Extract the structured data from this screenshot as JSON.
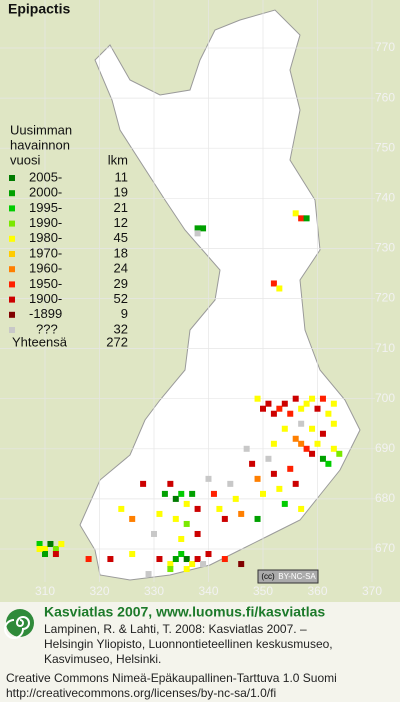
{
  "title": "Epipactis",
  "legend": {
    "heading": [
      "Uusimman",
      "havainnon",
      "vuosi"
    ],
    "count_heading": "lkm",
    "classes": [
      {
        "label": "2005-",
        "count": 11,
        "color": "#007a00"
      },
      {
        "label": "2000-",
        "count": 19,
        "color": "#00a000"
      },
      {
        "label": "1995-",
        "count": 21,
        "color": "#00cc00"
      },
      {
        "label": "1990-",
        "count": 12,
        "color": "#7ae800"
      },
      {
        "label": "1980-",
        "count": 45,
        "color": "#ffff00"
      },
      {
        "label": "1970-",
        "count": 18,
        "color": "#ffcc00"
      },
      {
        "label": "1960-",
        "count": 24,
        "color": "#ff7f00"
      },
      {
        "label": "1950-",
        "count": 29,
        "color": "#ff2000"
      },
      {
        "label": "1900-",
        "count": 52,
        "color": "#cc0000"
      },
      {
        "label": "-1899",
        "count": 9,
        "color": "#800000"
      },
      {
        "label": "???",
        "count": 32,
        "color": "#c8c8c8"
      }
    ],
    "total_label": "Yhteensä",
    "total": 272
  },
  "xticks": [
    310,
    320,
    330,
    340,
    350,
    360,
    370
  ],
  "yticks": [
    770,
    760,
    750,
    740,
    730,
    720,
    710,
    700,
    690,
    680,
    670
  ],
  "observations": [
    [
      309,
      671,
      2
    ],
    [
      310,
      670,
      4
    ],
    [
      311,
      671,
      0
    ],
    [
      312,
      670,
      3
    ],
    [
      313,
      671,
      4
    ],
    [
      310,
      669,
      1
    ],
    [
      312,
      669,
      8
    ],
    [
      309,
      670,
      4
    ],
    [
      318,
      668,
      7
    ],
    [
      322,
      668,
      8
    ],
    [
      326,
      669,
      4
    ],
    [
      331,
      668,
      8
    ],
    [
      333,
      667,
      4
    ],
    [
      334,
      668,
      1
    ],
    [
      335,
      669,
      2
    ],
    [
      336,
      668,
      0
    ],
    [
      337,
      667,
      4
    ],
    [
      338,
      668,
      8
    ],
    [
      333,
      666,
      3
    ],
    [
      336,
      666,
      4
    ],
    [
      339,
      667,
      10
    ],
    [
      340,
      669,
      8
    ],
    [
      343,
      668,
      7
    ],
    [
      346,
      667,
      9
    ],
    [
      329,
      665,
      10
    ],
    [
      331,
      677,
      4
    ],
    [
      332,
      681,
      1
    ],
    [
      333,
      683,
      8
    ],
    [
      334,
      680,
      0
    ],
    [
      335,
      681,
      2
    ],
    [
      336,
      679,
      4
    ],
    [
      337,
      681,
      1
    ],
    [
      338,
      678,
      8
    ],
    [
      334,
      676,
      4
    ],
    [
      336,
      675,
      3
    ],
    [
      338,
      673,
      8
    ],
    [
      335,
      672,
      4
    ],
    [
      340,
      684,
      10
    ],
    [
      341,
      681,
      7
    ],
    [
      342,
      678,
      4
    ],
    [
      343,
      676,
      8
    ],
    [
      344,
      683,
      10
    ],
    [
      345,
      680,
      4
    ],
    [
      346,
      677,
      6
    ],
    [
      328,
      683,
      8
    ],
    [
      326,
      676,
      6
    ],
    [
      324,
      678,
      4
    ],
    [
      330,
      673,
      10
    ],
    [
      347,
      690,
      10
    ],
    [
      348,
      687,
      8
    ],
    [
      349,
      684,
      6
    ],
    [
      350,
      681,
      4
    ],
    [
      351,
      688,
      10
    ],
    [
      352,
      685,
      8
    ],
    [
      353,
      682,
      4
    ],
    [
      354,
      679,
      2
    ],
    [
      355,
      686,
      7
    ],
    [
      356,
      683,
      8
    ],
    [
      357,
      678,
      4
    ],
    [
      349,
      676,
      1
    ],
    [
      352,
      691,
      4
    ],
    [
      349,
      700,
      4
    ],
    [
      350,
      698,
      8
    ],
    [
      351,
      699,
      8
    ],
    [
      352,
      697,
      8
    ],
    [
      353,
      698,
      7
    ],
    [
      354,
      699,
      8
    ],
    [
      355,
      697,
      7
    ],
    [
      356,
      700,
      8
    ],
    [
      357,
      698,
      4
    ],
    [
      358,
      699,
      4
    ],
    [
      359,
      700,
      4
    ],
    [
      360,
      698,
      8
    ],
    [
      361,
      700,
      7
    ],
    [
      362,
      697,
      4
    ],
    [
      363,
      699,
      4
    ],
    [
      354,
      694,
      4
    ],
    [
      356,
      692,
      6
    ],
    [
      357,
      691,
      6
    ],
    [
      358,
      690,
      7
    ],
    [
      359,
      689,
      8
    ],
    [
      360,
      691,
      4
    ],
    [
      361,
      688,
      1
    ],
    [
      362,
      687,
      2
    ],
    [
      363,
      690,
      4
    ],
    [
      364,
      689,
      3
    ],
    [
      361,
      693,
      8
    ],
    [
      357,
      695,
      10
    ],
    [
      359,
      694,
      4
    ],
    [
      363,
      695,
      4
    ],
    [
      338,
      734,
      1
    ],
    [
      339,
      734,
      1
    ],
    [
      338,
      733,
      10
    ],
    [
      356,
      737,
      4
    ],
    [
      357,
      736,
      7
    ],
    [
      358,
      736,
      1
    ],
    [
      352,
      723,
      7
    ],
    [
      353,
      722,
      4
    ]
  ],
  "license_badge": [
    "(cc)",
    "BY-NC-SA"
  ],
  "footer": {
    "headline": "Kasviatlas 2007, www.luomus.fi/kasviatlas",
    "citation": [
      "Lampinen, R. & Lahti, T. 2008: Kasviatlas 2007. –",
      "Helsingin Yliopisto, Luonnontieteellinen keskusmuseo,",
      "Kasvimuseo, Helsinki."
    ],
    "license": [
      "Creative Commons Nimeä-Epäkaupallinen-Tarttuva 1.0 Suomi",
      "http://creativecommons.org/licenses/by-nc-sa/1.0/fi"
    ]
  }
}
